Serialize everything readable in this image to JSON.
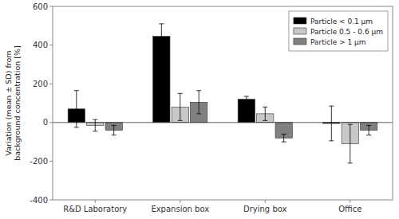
{
  "chart_data": {
    "type": "bar",
    "categories": [
      "R&D Laboratory",
      "Expansion box",
      "Drying box",
      "Office"
    ],
    "series": [
      {
        "name": "Particle < 0.1 μm",
        "color": "#000000",
        "values": [
          70,
          445,
          120,
          -5
        ],
        "errors_pos": [
          95,
          65,
          15,
          90
        ],
        "errors_neg": [
          95,
          65,
          15,
          90
        ]
      },
      {
        "name": "Particle 0.5 - 0.6 μm",
        "color": "#c8c8c8",
        "values": [
          -15,
          80,
          45,
          -110
        ],
        "errors_pos": [
          30,
          70,
          35,
          100
        ],
        "errors_neg": [
          30,
          70,
          35,
          100
        ]
      },
      {
        "name": "Particle > 1 μm",
        "color": "#808080",
        "values": [
          -40,
          105,
          -80,
          -40
        ],
        "errors_pos": [
          25,
          60,
          20,
          25
        ],
        "errors_neg": [
          25,
          60,
          20,
          25
        ]
      }
    ],
    "ylabel": "Variation (mean ± SD) from\nbackground concentration [%]",
    "ylim": [
      -400,
      600
    ],
    "yticks": [
      -400,
      -200,
      0,
      200,
      400,
      600
    ],
    "grid": false,
    "legend": "upper right"
  }
}
